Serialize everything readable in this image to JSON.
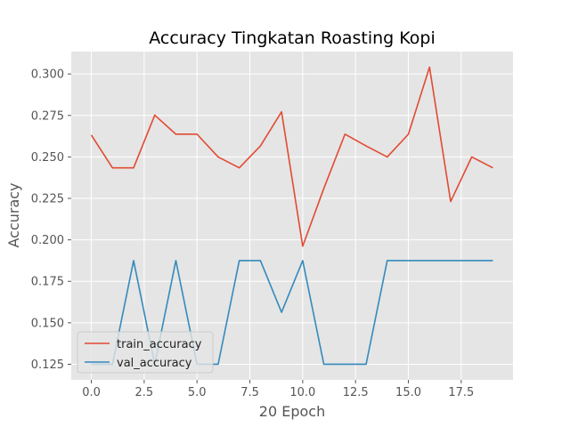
{
  "chart_data": {
    "type": "line",
    "title": "Accuracy Tingkatan Roasting Kopi",
    "xlabel": "20 Epoch",
    "ylabel": "Accuracy",
    "xlim": [
      -0.95,
      19.95
    ],
    "ylim": [
      0.1156,
      0.3135
    ],
    "xticks": [
      0.0,
      2.5,
      5.0,
      7.5,
      10.0,
      12.5,
      15.0,
      17.5
    ],
    "xtick_labels": [
      "0.0",
      "2.5",
      "5.0",
      "7.5",
      "10.0",
      "12.5",
      "15.0",
      "17.5"
    ],
    "yticks": [
      0.125,
      0.15,
      0.175,
      0.2,
      0.225,
      0.25,
      0.275,
      0.3
    ],
    "ytick_labels": [
      "0.125",
      "0.150",
      "0.175",
      "0.200",
      "0.225",
      "0.250",
      "0.275",
      "0.300"
    ],
    "grid": true,
    "legend_position": "lower-left",
    "x": [
      0,
      1,
      2,
      3,
      4,
      5,
      6,
      7,
      8,
      9,
      10,
      11,
      12,
      13,
      14,
      15,
      16,
      17,
      18,
      19
    ],
    "series": [
      {
        "name": "train_accuracy",
        "color": "#E24A33",
        "values": [
          0.2632,
          0.2434,
          0.2434,
          0.2752,
          0.2637,
          0.2637,
          0.25,
          0.2434,
          0.2566,
          0.2772,
          0.1962,
          0.231,
          0.2637,
          0.2566,
          0.25,
          0.2637,
          0.3041,
          0.2231,
          0.25,
          0.2434
        ]
      },
      {
        "name": "val_accuracy",
        "color": "#348ABD",
        "values": [
          0.125,
          0.125,
          0.1875,
          0.125,
          0.1875,
          0.125,
          0.125,
          0.1875,
          0.1875,
          0.1563,
          0.1875,
          0.125,
          0.125,
          0.125,
          0.1875,
          0.1875,
          0.1875,
          0.1875,
          0.1875,
          0.1875
        ]
      }
    ]
  }
}
